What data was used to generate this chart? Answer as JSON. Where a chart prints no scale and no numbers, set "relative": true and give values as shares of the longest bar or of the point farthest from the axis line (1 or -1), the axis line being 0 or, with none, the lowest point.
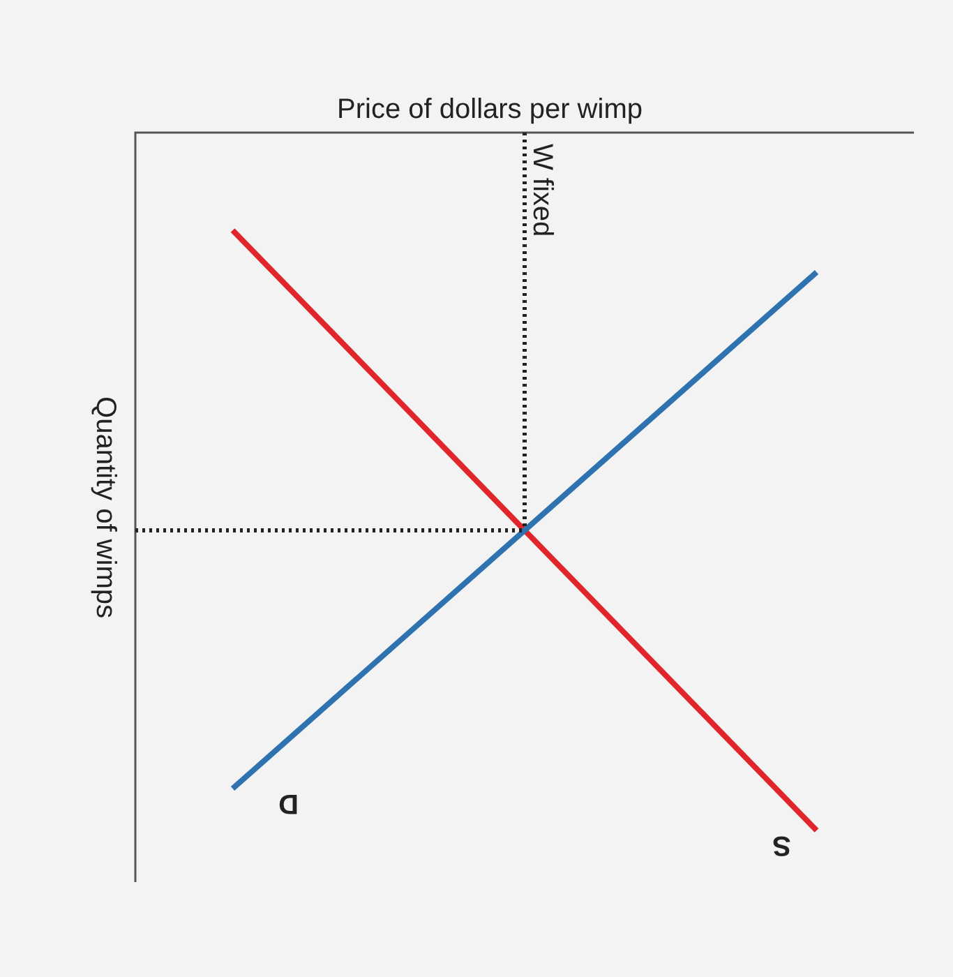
{
  "chart_data": {
    "type": "line",
    "title": "Price of dollars per wimp",
    "ylabel": "Quantity of wimps",
    "relative": true,
    "categories": [
      null,
      null,
      null,
      null,
      null,
      null,
      null,
      null,
      null
    ],
    "series": [
      {
        "name": "D",
        "color": "#2f72b0",
        "values": [
          null,
          -0.94,
          null,
          null,
          null,
          null,
          null,
          -0.2,
          null
        ]
      },
      {
        "name": "S",
        "color": "#e0262b",
        "values": [
          null,
          -0.14,
          null,
          null,
          null,
          null,
          null,
          -1,
          null
        ]
      }
    ],
    "ref_lines": [
      {
        "axis": "y",
        "value": -0.57,
        "line_style": "dotted",
        "color": "#222222"
      }
    ],
    "annotations": [
      "W fixed"
    ],
    "marker": "none",
    "line_style": "solid"
  }
}
